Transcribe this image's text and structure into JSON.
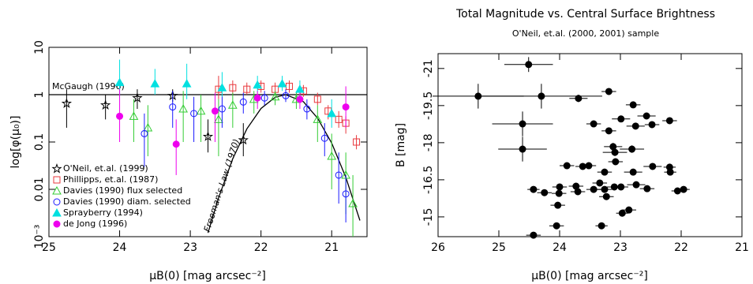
{
  "chart_data": [
    {
      "type": "scatter",
      "log_y": true,
      "x_label": "μB(0) [mag arcsec⁻²]",
      "y_label": "log[φ(μ₀)]",
      "xlim": [
        25,
        20.5
      ],
      "xticks": [
        25,
        24,
        23,
        22,
        21
      ],
      "ylim": [
        0.001,
        10
      ],
      "yticks": [
        {
          "value": 0.001,
          "label": "10⁻³"
        },
        0.01,
        0.1,
        1,
        10
      ],
      "legend": "lower-left",
      "series": [
        {
          "name": "O'Neil, et.al. (1999)",
          "color": "#000000",
          "marker": "star",
          "x": [
            24.75,
            24.2,
            23.75,
            23.25,
            22.75,
            22.25
          ],
          "values": [
            0.65,
            0.6,
            0.85,
            0.95,
            0.13,
            0.11
          ],
          "err_low": [
            0.2,
            0.3,
            0.5,
            0.7,
            0.06,
            0.05
          ],
          "err_high": [
            1.3,
            1.0,
            1.3,
            1.3,
            0.3,
            0.25
          ]
        },
        {
          "name": "Phillipps, et.al. (1987)",
          "color": "#e8383d",
          "marker": "square",
          "x": [
            22.6,
            22.4,
            22.2,
            22.0,
            21.8,
            21.6,
            21.4,
            21.2,
            21.05,
            20.9,
            20.8,
            20.65
          ],
          "values": [
            1.3,
            1.4,
            1.3,
            1.5,
            1.3,
            1.5,
            1.2,
            0.8,
            0.45,
            0.3,
            0.25,
            0.1
          ],
          "err_low": [
            0.8,
            1.0,
            1.0,
            1.1,
            1.0,
            1.1,
            0.9,
            0.6,
            0.3,
            0.2,
            0.15,
            0.07
          ],
          "err_high": [
            2.5,
            2.0,
            1.8,
            2.0,
            1.8,
            2.0,
            1.6,
            1.1,
            0.6,
            0.45,
            0.35,
            0.14
          ]
        },
        {
          "name": "Davies (1990) flux selected",
          "color": "#33cc33",
          "marker": "triangle",
          "x": [
            23.8,
            23.6,
            23.1,
            22.85,
            22.6,
            22.4,
            22.1,
            21.8,
            21.5,
            21.2,
            21.0,
            20.8,
            20.7
          ],
          "values": [
            0.35,
            0.2,
            0.5,
            0.45,
            0.3,
            0.6,
            0.8,
            0.9,
            0.8,
            0.3,
            0.05,
            0.02,
            0.005
          ],
          "err_low": [
            0.1,
            0.05,
            0.1,
            0.1,
            0.05,
            0.2,
            0.4,
            0.6,
            0.5,
            0.1,
            0.01,
            0.003,
            0.001
          ],
          "err_high": [
            0.8,
            0.6,
            1.2,
            1.0,
            0.8,
            1.1,
            1.2,
            1.2,
            1.1,
            0.6,
            0.15,
            0.06,
            0.02
          ]
        },
        {
          "name": "Davies (1990) diam. selected",
          "color": "#1a1aff",
          "marker": "circle",
          "x": [
            23.65,
            23.25,
            22.95,
            22.55,
            22.25,
            21.95,
            21.65,
            21.35,
            21.1,
            20.9,
            20.8
          ],
          "values": [
            0.15,
            0.55,
            0.4,
            0.5,
            0.7,
            0.85,
            0.95,
            0.5,
            0.12,
            0.02,
            0.008
          ],
          "err_low": [
            0.03,
            0.2,
            0.1,
            0.2,
            0.4,
            0.6,
            0.7,
            0.3,
            0.05,
            0.005,
            0.002
          ],
          "err_high": [
            0.4,
            1.2,
            0.9,
            1.0,
            1.1,
            1.2,
            1.3,
            0.8,
            0.25,
            0.06,
            0.02
          ]
        },
        {
          "name": "Sprayberry (1994)",
          "color": "#00e0e0",
          "marker": "triangle-filled",
          "x": [
            24.0,
            23.5,
            23.05,
            22.55,
            22.05,
            21.7,
            21.45,
            21.0
          ],
          "values": [
            1.8,
            1.7,
            1.7,
            1.4,
            1.6,
            1.7,
            1.3,
            0.4
          ],
          "err_low": [
            0.9,
            1.0,
            0.8,
            0.9,
            1.1,
            1.2,
            0.9,
            0.2
          ],
          "err_high": [
            5.5,
            3.5,
            4.5,
            3.0,
            2.5,
            2.5,
            2.0,
            0.8
          ]
        },
        {
          "name": "de Jong (1996)",
          "color": "#ee00ee",
          "marker": "circle-filled",
          "x": [
            24.0,
            23.2,
            22.65,
            22.05,
            21.45,
            20.8
          ],
          "values": [
            0.35,
            0.09,
            0.45,
            0.85,
            0.8,
            0.55
          ],
          "err_low": [
            0.1,
            0.02,
            0.1,
            0.5,
            0.5,
            0.2
          ],
          "err_high": [
            1.3,
            0.3,
            1.1,
            1.2,
            1.1,
            1.5
          ]
        }
      ],
      "lines": [
        {
          "label": "McGaugh (1996)",
          "value": 1
        },
        {
          "label": "Freeman's Law (1970)",
          "x": [
            22.75,
            22.6,
            22.4,
            22.2,
            22.0,
            21.8,
            21.65,
            21.4,
            21.2,
            21.0,
            20.8,
            20.6
          ],
          "values": [
            0.0012,
            0.0066,
            0.044,
            0.19,
            0.51,
            0.88,
            1,
            0.71,
            0.32,
            0.095,
            0.018,
            0.0022
          ]
        }
      ]
    },
    {
      "type": "scatter",
      "title": "Total Magnitude vs. Central Surface Brightness",
      "subtitle": "O'Neil, et.al. (2000, 2001) sample",
      "x_label": "μB(0) [mag arcsec⁻²]",
      "y_label": "B [mag]",
      "xlim": [
        26,
        21
      ],
      "xticks": [
        26,
        25,
        24,
        23,
        22,
        21
      ],
      "ylim": [
        -14.2,
        -21.6
      ],
      "yticks": [
        -21,
        -19.5,
        -18,
        -16.5,
        -15
      ],
      "series": [
        {
          "color": "#000000",
          "marker": "circle-filled",
          "x": [
            24.51,
            25.34,
            24.3,
            23.69,
            24.61,
            24.61,
            23.19,
            22.79,
            22.99,
            22.57,
            22.48,
            22.75,
            22.19,
            23.44,
            23.19,
            23.12,
            23.09,
            22.81,
            23.08,
            23.52,
            23.88,
            23.62,
            23.26,
            22.79,
            22.47,
            22.19,
            22.18,
            23.34,
            23.1,
            22.99,
            24.0,
            23.73,
            23.44,
            23.26,
            22.74,
            22.56,
            22.06,
            21.96,
            24.43,
            24.25,
            24.01,
            24.03,
            23.7,
            22.97,
            22.86,
            24.05,
            23.31,
            24.43,
            23.23
          ],
          "values": [
            -21.16,
            -19.88,
            -19.88,
            -19.79,
            -18.76,
            -17.74,
            -20.07,
            -19.53,
            -18.96,
            -19.08,
            -18.73,
            -18.67,
            -18.89,
            -18.76,
            -18.48,
            -17.84,
            -17.61,
            -17.74,
            -17.23,
            -17.07,
            -17.07,
            -17.04,
            -16.81,
            -16.81,
            -17.04,
            -17.01,
            -16.81,
            -16.37,
            -16.21,
            -16.21,
            -16.21,
            -16.24,
            -16.11,
            -16.11,
            -16.3,
            -16.14,
            -16.05,
            -16.11,
            -16.11,
            -15.98,
            -15.95,
            -15.47,
            -16.02,
            -15.15,
            -15.28,
            -14.64,
            -14.64,
            -14.26,
            -15.82
          ],
          "xerr": [
            0.4,
            0.75,
            1.0,
            0.15,
            0.5,
            0.4,
            0.12,
            0.12,
            0.15,
            0.15,
            0.12,
            0.15,
            0.12,
            0.12,
            0.12,
            0.15,
            0.2,
            0.2,
            0.12,
            0.12,
            0.12,
            0.12,
            0.12,
            0.15,
            0.15,
            0.1,
            0.1,
            0.12,
            0.12,
            0.12,
            0.12,
            0.12,
            0.12,
            0.12,
            0.15,
            0.12,
            0.1,
            0.1,
            0.1,
            0.12,
            0.12,
            0.12,
            0.12,
            0.1,
            0.12,
            0.12,
            0.1,
            0.12,
            0.12
          ],
          "yerr": [
            0.3,
            0.5,
            0.5,
            0.15,
            0.5,
            0.5,
            0.08,
            0.08,
            0.1,
            0.1,
            0.1,
            0.1,
            0.08,
            0.08,
            0.08,
            0.15,
            0.15,
            0.15,
            0.08,
            0.08,
            0.08,
            0.08,
            0.08,
            0.1,
            0.08,
            0.08,
            0.08,
            0.08,
            0.08,
            0.08,
            0.08,
            0.08,
            0.08,
            0.08,
            0.08,
            0.08,
            0.08,
            0.08,
            0.08,
            0.08,
            0.08,
            0.08,
            0.08,
            0.1,
            0.1,
            0.08,
            0.08,
            0.08,
            0.08
          ]
        }
      ]
    }
  ]
}
